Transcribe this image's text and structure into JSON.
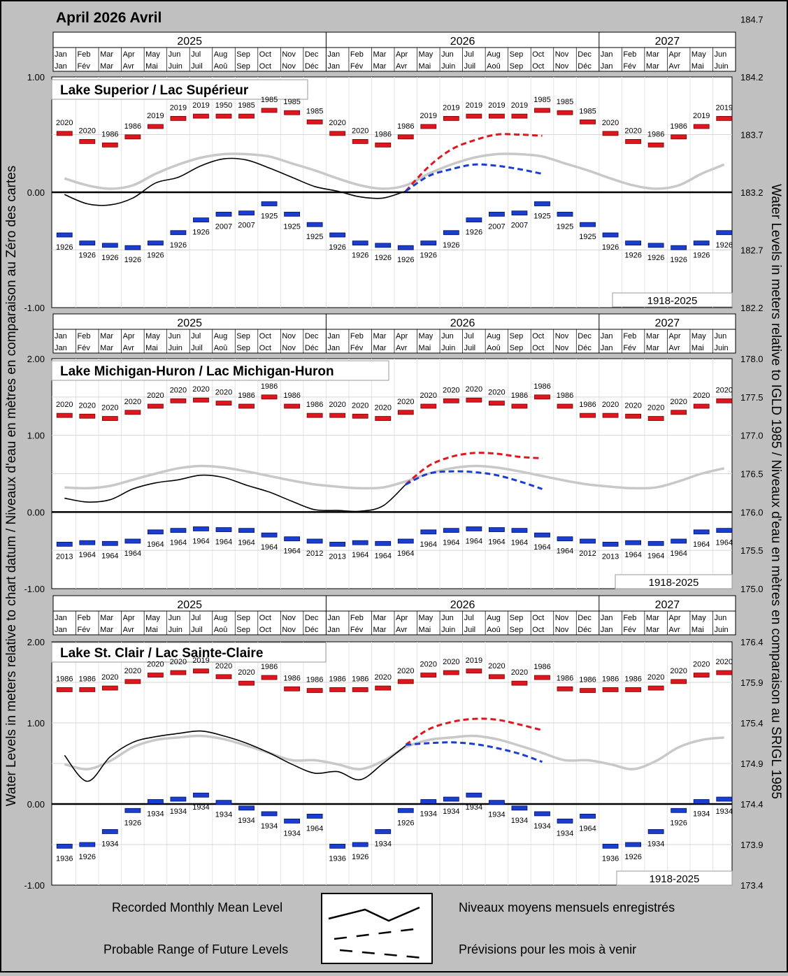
{
  "page_title": "April 2026 Avril",
  "left_axis_title": "Water Levels in meters relative to chart datum / Niveaux d'eau en mètres en comparaison au Zéro des cartes",
  "right_axis_title": "Water Levels in meters relative to IGLD 1985 / Niveaux d'eau en mètres en comparaison au SRIGL 1985",
  "years": [
    "2025",
    "2026",
    "2027"
  ],
  "months_en": [
    "Jan",
    "Feb",
    "Mar",
    "Apr",
    "May",
    "Jun",
    "Jul",
    "Aug",
    "Sep",
    "Oct",
    "Nov",
    "Dec",
    "Jan",
    "Feb",
    "Mar",
    "Apr",
    "May",
    "Jun",
    "Jul",
    "Aug",
    "Sep",
    "Oct",
    "Nov",
    "Dec",
    "Jan",
    "Feb",
    "Mar",
    "Apr",
    "May",
    "Jun"
  ],
  "months_fr": [
    "Jan",
    "Fév",
    "Mar",
    "Avr",
    "Mai",
    "Juin",
    "Juil",
    "Aoû",
    "Sep",
    "Oct",
    "Nov",
    "Déc",
    "Jan",
    "Fév",
    "Mar",
    "Avr",
    "Mai",
    "Juin",
    "Juil",
    "Aoû",
    "Sep",
    "Oct",
    "Nov",
    "Déc",
    "Jan",
    "Fév",
    "Mar",
    "Avr",
    "Mai",
    "Juin"
  ],
  "record_period": "1918-2025",
  "legend": {
    "recorded_en": "Recorded Monthly Mean Level",
    "recorded_fr": "Niveaux moyens mensuels enregistrés",
    "forecast_en": "Probable Range of Future Levels",
    "forecast_fr": "Prévisions pour les mois à venir"
  },
  "colors": {
    "max": "#e0161e",
    "min": "#1a3fd0",
    "average": "#c8c8c8",
    "recorded": "#000000",
    "background": "#c0c0c0"
  },
  "chart_data": [
    {
      "type": "line",
      "title": "Lake Superior / Lac Supérieur",
      "ylim": [
        -1.0,
        1.0
      ],
      "y_ticks": [
        "1.00",
        "0.00",
        "-1.00"
      ],
      "y_tick_values": [
        1.0,
        0.0,
        -1.0
      ],
      "right_ylim": [
        182.2,
        184.7
      ],
      "right_ticks": [
        "184.7",
        "184.2",
        "183.7",
        "183.2",
        "182.7",
        "182.2"
      ],
      "right_tick_values": [
        184.7,
        184.2,
        183.7,
        183.2,
        182.7,
        182.2
      ],
      "max": [
        0.51,
        0.44,
        0.41,
        0.48,
        0.57,
        0.64,
        0.66,
        0.66,
        0.66,
        0.71,
        0.69,
        0.61,
        0.51,
        0.44,
        0.41,
        0.48,
        0.57,
        0.64,
        0.66,
        0.66,
        0.66,
        0.71,
        0.69,
        0.61,
        0.51,
        0.44,
        0.41,
        0.48,
        0.57,
        0.64
      ],
      "max_years": [
        "2020",
        "2020",
        "1986",
        "1986",
        "2019",
        "2019",
        "2019",
        "1950",
        "1985",
        "1985",
        "1985",
        "1985",
        "2020",
        "2020",
        "1986",
        "1986",
        "2019",
        "2019",
        "2019",
        "2019",
        "2019",
        "1985",
        "1985",
        "1985",
        "2020",
        "2020",
        "1986",
        "1986",
        "2019",
        "2019"
      ],
      "min": [
        -0.37,
        -0.44,
        -0.46,
        -0.48,
        -0.44,
        -0.35,
        -0.24,
        -0.19,
        -0.18,
        -0.1,
        -0.19,
        -0.28,
        -0.37,
        -0.44,
        -0.46,
        -0.48,
        -0.44,
        -0.35,
        -0.24,
        -0.19,
        -0.18,
        -0.1,
        -0.19,
        -0.28,
        -0.37,
        -0.44,
        -0.46,
        -0.48,
        -0.44,
        -0.35
      ],
      "min_years": [
        "1926",
        "1926",
        "1926",
        "1926",
        "1926",
        "1926",
        "1926",
        "2007",
        "2007",
        "1925",
        "1925",
        "1925",
        "1926",
        "1926",
        "1926",
        "1926",
        "1926",
        "1926",
        "1926",
        "2007",
        "2007",
        "1925",
        "1925",
        "1925",
        "1926",
        "1926",
        "1926",
        "1926",
        "1926",
        "1926"
      ],
      "average": [
        0.12,
        0.06,
        0.03,
        0.06,
        0.16,
        0.24,
        0.3,
        0.33,
        0.33,
        0.31,
        0.25,
        0.19,
        0.12,
        0.06,
        0.03,
        0.06,
        0.16,
        0.24,
        0.3,
        0.33,
        0.33,
        0.31,
        0.25,
        0.19,
        0.12,
        0.06,
        0.03,
        0.06,
        0.16,
        0.24
      ],
      "recorded": [
        -0.02,
        -0.1,
        -0.11,
        -0.05,
        0.08,
        0.13,
        0.23,
        0.29,
        0.28,
        0.21,
        0.13,
        0.05,
        0.01,
        -0.04,
        -0.05,
        0.01
      ],
      "forecast_high": [
        0.01,
        0.22,
        0.37,
        0.45,
        0.5,
        0.5,
        0.49
      ],
      "forecast_low": [
        0.01,
        0.14,
        0.2,
        0.24,
        0.23,
        0.2,
        0.16
      ],
      "forecast_start_month": 15
    },
    {
      "type": "line",
      "title": "Lake Michigan-Huron / Lac Michigan-Huron",
      "ylim": [
        -1.0,
        2.0
      ],
      "y_ticks": [
        "2.00",
        "1.00",
        "0.00",
        "-1.00"
      ],
      "y_tick_values": [
        2.0,
        1.0,
        0.0,
        -1.0
      ],
      "right_ylim": [
        175.0,
        178.0
      ],
      "right_ticks": [
        "178.0",
        "177.5",
        "177.0",
        "176.5",
        "176.0",
        "175.5",
        "175.0"
      ],
      "right_tick_values": [
        178.0,
        177.5,
        177.0,
        176.5,
        176.0,
        175.5,
        175.0
      ],
      "max": [
        1.26,
        1.25,
        1.22,
        1.3,
        1.38,
        1.45,
        1.46,
        1.42,
        1.38,
        1.5,
        1.38,
        1.26,
        1.26,
        1.25,
        1.22,
        1.3,
        1.38,
        1.45,
        1.46,
        1.42,
        1.38,
        1.5,
        1.38,
        1.26,
        1.26,
        1.25,
        1.22,
        1.3,
        1.38,
        1.45
      ],
      "max_years": [
        "2020",
        "2020",
        "2020",
        "2020",
        "2020",
        "2020",
        "2020",
        "2020",
        "1986",
        "1986",
        "1986",
        "1986",
        "2020",
        "2020",
        "2020",
        "2020",
        "2020",
        "2020",
        "2020",
        "2020",
        "1986",
        "1986",
        "1986",
        "1986",
        "2020",
        "2020",
        "2020",
        "2020",
        "2020",
        "2020"
      ],
      "min": [
        -0.42,
        -0.4,
        -0.41,
        -0.38,
        -0.26,
        -0.24,
        -0.22,
        -0.23,
        -0.24,
        -0.3,
        -0.35,
        -0.38,
        -0.42,
        -0.4,
        -0.41,
        -0.38,
        -0.26,
        -0.24,
        -0.22,
        -0.23,
        -0.24,
        -0.3,
        -0.35,
        -0.38,
        -0.42,
        -0.4,
        -0.41,
        -0.38,
        -0.26,
        -0.24
      ],
      "min_years": [
        "2013",
        "1964",
        "1964",
        "1964",
        "1964",
        "1964",
        "1964",
        "1964",
        "1964",
        "1964",
        "1964",
        "2012",
        "2013",
        "1964",
        "1964",
        "1964",
        "1964",
        "1964",
        "1964",
        "1964",
        "1964",
        "1964",
        "1964",
        "2012",
        "2013",
        "1964",
        "1964",
        "1964",
        "1964",
        "1964"
      ],
      "average": [
        0.32,
        0.31,
        0.34,
        0.42,
        0.5,
        0.57,
        0.6,
        0.58,
        0.53,
        0.47,
        0.41,
        0.36,
        0.33,
        0.31,
        0.32,
        0.4,
        0.5,
        0.57,
        0.6,
        0.58,
        0.53,
        0.47,
        0.41,
        0.36,
        0.33,
        0.31,
        0.32,
        0.4,
        0.5,
        0.57
      ],
      "recorded": [
        0.18,
        0.13,
        0.16,
        0.3,
        0.38,
        0.42,
        0.48,
        0.45,
        0.35,
        0.26,
        0.14,
        0.03,
        0.02,
        0.01,
        0.08,
        0.36
      ],
      "forecast_high": [
        0.36,
        0.6,
        0.72,
        0.77,
        0.76,
        0.72,
        0.7
      ],
      "forecast_low": [
        0.36,
        0.5,
        0.53,
        0.52,
        0.48,
        0.4,
        0.3
      ],
      "forecast_start_month": 15
    },
    {
      "type": "line",
      "title": "Lake St. Clair / Lac Sainte-Claire",
      "ylim": [
        -1.0,
        2.0
      ],
      "y_ticks": [
        "2.00",
        "1.00",
        "0.00",
        "-1.00"
      ],
      "y_tick_values": [
        2.0,
        1.0,
        0.0,
        -1.0
      ],
      "right_ylim": [
        173.4,
        176.4
      ],
      "right_ticks": [
        "176.4",
        "175.9",
        "175.4",
        "174.9",
        "174.4",
        "173.9",
        "173.4"
      ],
      "right_tick_values": [
        176.4,
        175.9,
        175.4,
        174.9,
        174.4,
        173.9,
        173.4
      ],
      "max": [
        1.41,
        1.41,
        1.43,
        1.51,
        1.59,
        1.62,
        1.64,
        1.57,
        1.49,
        1.56,
        1.42,
        1.4,
        1.41,
        1.41,
        1.43,
        1.51,
        1.59,
        1.62,
        1.64,
        1.57,
        1.49,
        1.56,
        1.42,
        1.4,
        1.41,
        1.41,
        1.43,
        1.51,
        1.59,
        1.62
      ],
      "max_years": [
        "1986",
        "1986",
        "2020",
        "2020",
        "2020",
        "2020",
        "2019",
        "2020",
        "2020",
        "1986",
        "1986",
        "1986",
        "1986",
        "1986",
        "2020",
        "2020",
        "2020",
        "2020",
        "2019",
        "2020",
        "2020",
        "1986",
        "1986",
        "1986",
        "1986",
        "1986",
        "2020",
        "2020",
        "2020",
        "2020"
      ],
      "min": [
        -0.52,
        -0.5,
        -0.34,
        -0.08,
        0.03,
        0.06,
        0.11,
        0.02,
        -0.05,
        -0.12,
        -0.21,
        -0.15,
        -0.52,
        -0.5,
        -0.34,
        -0.08,
        0.03,
        0.06,
        0.11,
        0.02,
        -0.05,
        -0.12,
        -0.21,
        -0.15,
        -0.52,
        -0.5,
        -0.34,
        -0.08,
        0.03,
        0.06
      ],
      "min_years": [
        "1936",
        "1926",
        "1934",
        "1926",
        "1934",
        "1934",
        "1934",
        "1934",
        "1934",
        "1934",
        "1934",
        "1964",
        "1936",
        "1926",
        "1934",
        "1926",
        "1934",
        "1934",
        "1934",
        "1934",
        "1934",
        "1934",
        "1934",
        "1964",
        "1936",
        "1926",
        "1934",
        "1926",
        "1934",
        "1934"
      ],
      "average": [
        0.49,
        0.43,
        0.53,
        0.7,
        0.79,
        0.82,
        0.84,
        0.8,
        0.72,
        0.63,
        0.54,
        0.54,
        0.49,
        0.43,
        0.53,
        0.7,
        0.79,
        0.82,
        0.84,
        0.8,
        0.72,
        0.63,
        0.54,
        0.54,
        0.49,
        0.43,
        0.53,
        0.7,
        0.79,
        0.82
      ],
      "recorded": [
        0.6,
        0.28,
        0.58,
        0.76,
        0.83,
        0.87,
        0.9,
        0.84,
        0.75,
        0.63,
        0.49,
        0.38,
        0.4,
        0.3,
        0.5,
        0.72
      ],
      "forecast_high": [
        0.73,
        0.92,
        1.01,
        1.05,
        1.04,
        0.98,
        0.91
      ],
      "forecast_low": [
        0.73,
        0.75,
        0.76,
        0.74,
        0.69,
        0.62,
        0.52
      ],
      "forecast_start_month": 15
    }
  ]
}
